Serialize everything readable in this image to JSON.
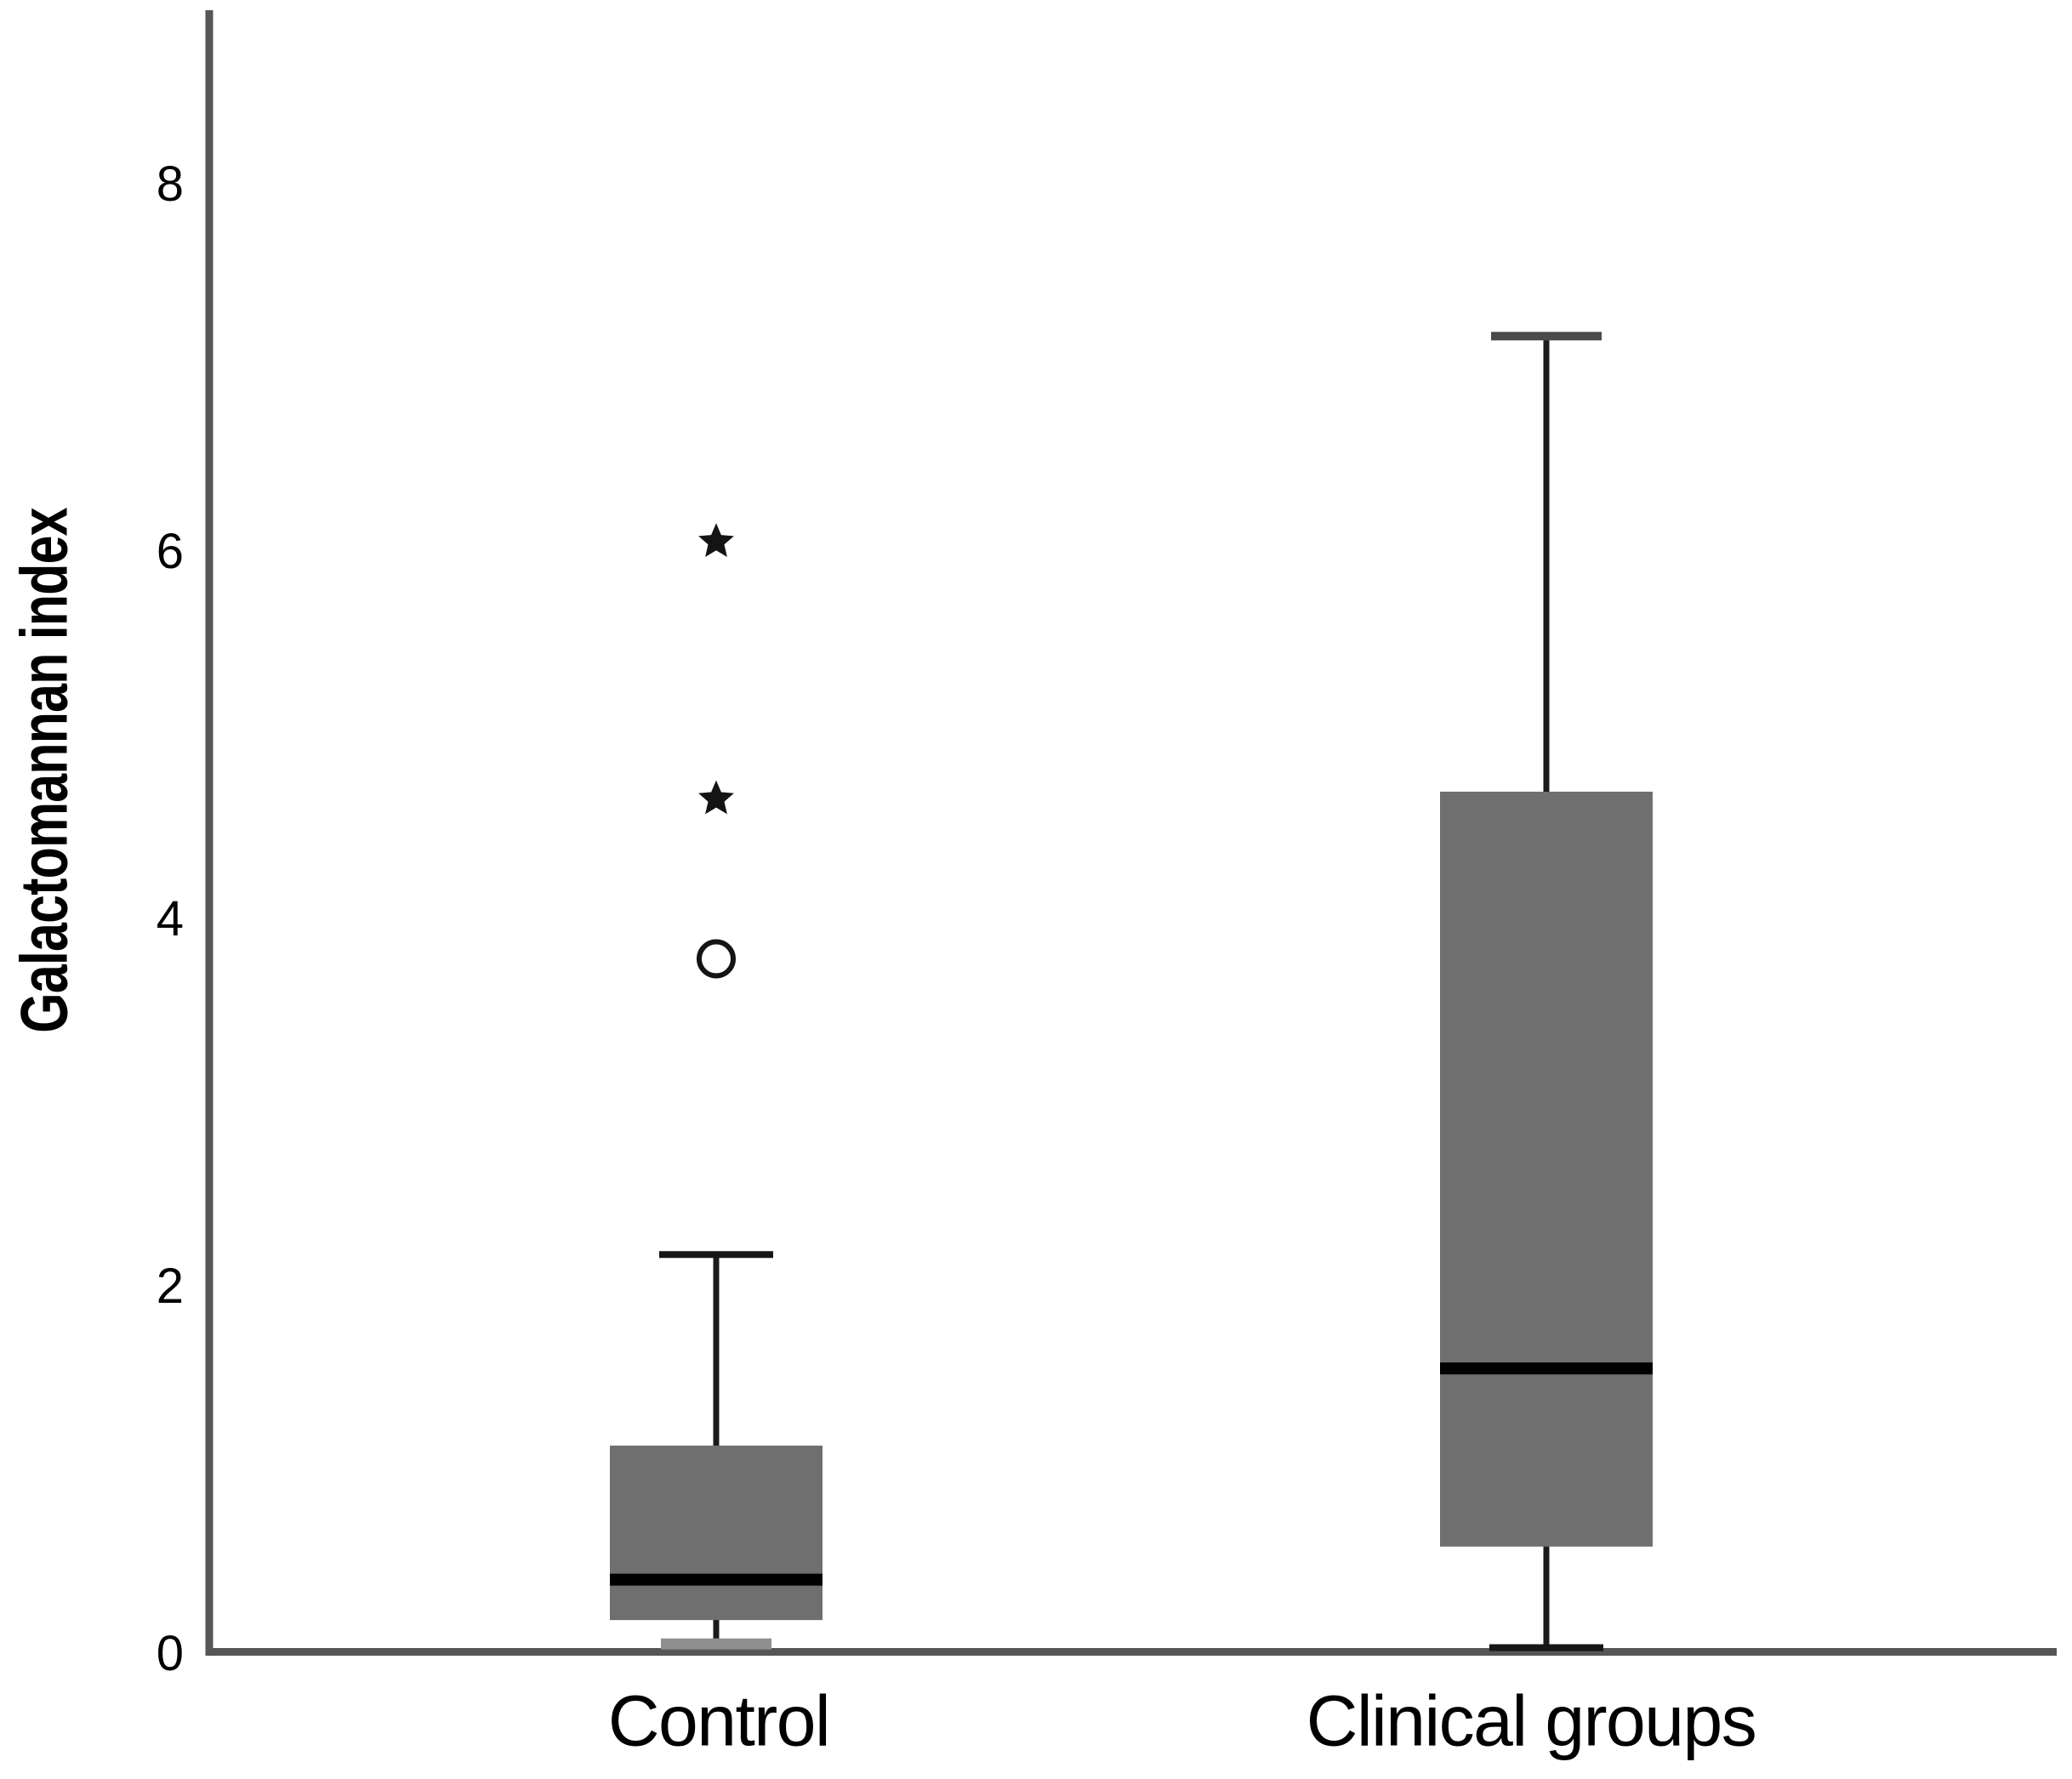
{
  "figure": {
    "background": "#ffffff"
  },
  "chart_data": {
    "type": "box",
    "title": "",
    "xlabel": "",
    "ylabel": "Galactomannan index",
    "ylim": [
      0,
      8.94
    ],
    "yticks": [
      0,
      2,
      4,
      6,
      8
    ],
    "grid": false,
    "legend": null,
    "categories": [
      "Control",
      "Clinical groups"
    ],
    "series": [
      {
        "name": "Control",
        "whisker_low": 0.05,
        "q1": 0.18,
        "median": 0.4,
        "q3": 1.13,
        "whisker_high": 2.17,
        "outliers": [
          {
            "value": 3.78,
            "symbol": "circle"
          },
          {
            "value": 4.65,
            "symbol": "star"
          },
          {
            "value": 6.05,
            "symbol": "star"
          }
        ],
        "upper_cap": "black",
        "lower_cap": "gray-thick"
      },
      {
        "name": "Clinical groups",
        "whisker_low": 0.03,
        "q1": 0.58,
        "median": 1.55,
        "q3": 4.69,
        "whisker_high": 7.17,
        "outliers": [],
        "upper_cap": "dark",
        "lower_cap": "black"
      }
    ],
    "colors": {
      "box_fill": "#6f6f6f",
      "median": "#000000",
      "whisker": "#1b1b1b",
      "axis": "#565656",
      "outlier": "#141414",
      "text": "#000000"
    }
  }
}
